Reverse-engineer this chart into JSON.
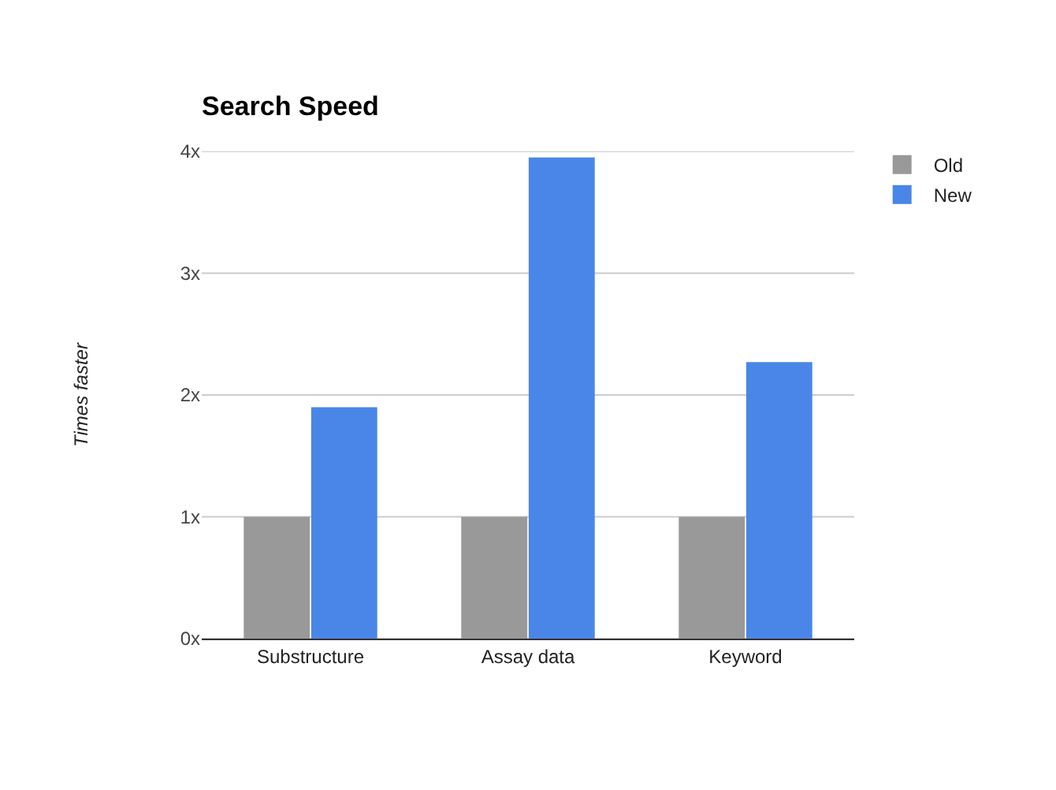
{
  "chart_data": {
    "type": "bar",
    "title": "Search Speed",
    "ylabel": "Times faster",
    "categories": [
      "Substructure",
      "Assay data",
      "Keyword"
    ],
    "series": [
      {
        "name": "Old",
        "color": "#999999",
        "values": [
          1,
          1,
          1
        ]
      },
      {
        "name": "New",
        "color": "#4a86e8",
        "values": [
          1.9,
          3.95,
          2.27
        ]
      }
    ],
    "ylim": [
      0,
      4
    ],
    "yticks": [
      {
        "value": 0,
        "label": "0x"
      },
      {
        "value": 1,
        "label": "1x"
      },
      {
        "value": 2,
        "label": "2x"
      },
      {
        "value": 3,
        "label": "3x"
      },
      {
        "value": 4,
        "label": "4x"
      }
    ],
    "grid": "y",
    "legend": "top right"
  }
}
